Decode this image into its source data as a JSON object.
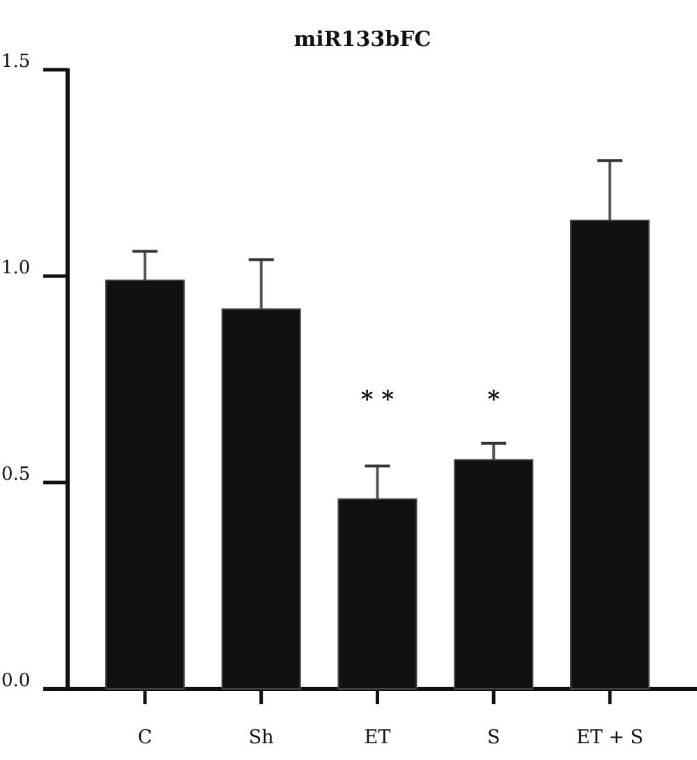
{
  "chart_data": {
    "type": "bar",
    "title": "miR133bFC",
    "xlabel": "",
    "ylabel": "",
    "categories": [
      "C",
      "Sh",
      "ET",
      "S",
      "ET + S"
    ],
    "values": [
      0.99,
      0.92,
      0.46,
      0.555,
      1.135
    ],
    "error_upper": [
      1.06,
      1.04,
      0.54,
      0.595,
      1.28
    ],
    "significance": [
      "",
      "",
      "* *",
      "*",
      ""
    ],
    "ylim": [
      0,
      1.5
    ],
    "yticks": [
      "0.0",
      "0.5",
      "1.0",
      "1.5"
    ],
    "bar_color": "#111111",
    "axis_color": "#111111",
    "grid": false,
    "legend": "none"
  }
}
